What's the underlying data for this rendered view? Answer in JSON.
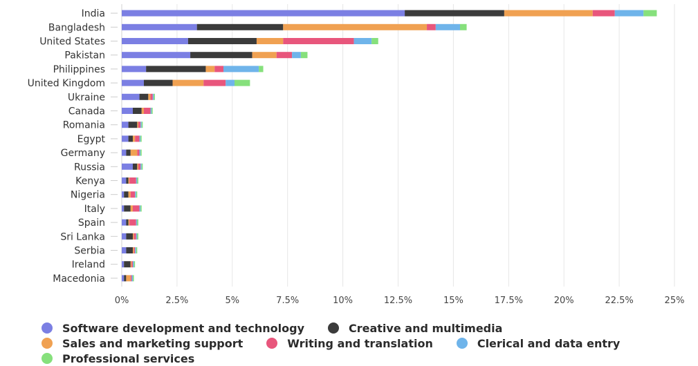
{
  "chart_data": {
    "type": "bar",
    "orientation": "horizontal",
    "stacked": true,
    "categories": [
      "India",
      "Bangladesh",
      "United States",
      "Pakistan",
      "Philippines",
      "United Kingdom",
      "Ukraine",
      "Canada",
      "Romania",
      "Egypt",
      "Germany",
      "Russia",
      "Kenya",
      "Nigeria",
      "Italy",
      "Spain",
      "Sri Lanka",
      "Serbia",
      "Ireland",
      "Macedonia"
    ],
    "series": [
      {
        "name": "Software development and technology",
        "color": "#7b7fe3",
        "values": [
          12.8,
          3.4,
          3.0,
          3.1,
          1.1,
          1.0,
          0.8,
          0.5,
          0.3,
          0.3,
          0.2,
          0.5,
          0.2,
          0.1,
          0.1,
          0.2,
          0.2,
          0.2,
          0.1,
          0.1
        ]
      },
      {
        "name": "Creative and multimedia",
        "color": "#3b3b3b",
        "values": [
          4.5,
          3.9,
          3.1,
          2.8,
          2.7,
          1.3,
          0.4,
          0.4,
          0.4,
          0.2,
          0.2,
          0.2,
          0.1,
          0.2,
          0.3,
          0.1,
          0.3,
          0.3,
          0.3,
          0.1
        ]
      },
      {
        "name": "Sales and marketing support",
        "color": "#f0a152",
        "values": [
          4.0,
          6.5,
          1.2,
          1.1,
          0.4,
          1.4,
          0.1,
          0.1,
          0.05,
          0.1,
          0.3,
          0.05,
          0.05,
          0.1,
          0.1,
          0.05,
          0.05,
          0.05,
          0.05,
          0.2
        ]
      },
      {
        "name": "Writing and translation",
        "color": "#e8567c",
        "values": [
          1.0,
          0.4,
          3.2,
          0.7,
          0.4,
          1.0,
          0.1,
          0.3,
          0.1,
          0.2,
          0.1,
          0.1,
          0.3,
          0.2,
          0.3,
          0.3,
          0.1,
          0.05,
          0.05,
          0.05
        ]
      },
      {
        "name": "Clerical and data entry",
        "color": "#6fb4ea",
        "values": [
          1.3,
          1.1,
          0.8,
          0.4,
          1.6,
          0.4,
          0.05,
          0.05,
          0.05,
          0.05,
          0.05,
          0.05,
          0.05,
          0.05,
          0.05,
          0.05,
          0.05,
          0.05,
          0.05,
          0.05
        ]
      },
      {
        "name": "Professional services",
        "color": "#86e07c",
        "values": [
          0.6,
          0.3,
          0.3,
          0.3,
          0.2,
          0.7,
          0.05,
          0.05,
          0.05,
          0.05,
          0.05,
          0.05,
          0.05,
          0.05,
          0.05,
          0.05,
          0.05,
          0.05,
          0.05,
          0.05
        ]
      }
    ],
    "x_ticks": [
      "0%",
      "2.5%",
      "5%",
      "7.5%",
      "10%",
      "12.5%",
      "15%",
      "17.5%",
      "20%",
      "22.5%",
      "25%"
    ],
    "xlim": [
      0,
      25
    ],
    "grid": true,
    "legend_position": "bottom"
  }
}
